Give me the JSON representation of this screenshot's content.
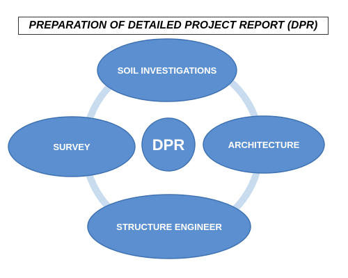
{
  "title": "PREPARATION OF DETAILED PROJECT REPORT (DPR)",
  "colors": {
    "node_fill": "#5b8fcf",
    "node_stroke": "#3f72b2",
    "ring": "#c9dcef",
    "label": "#ffffff"
  },
  "center": {
    "label": "DPR"
  },
  "nodes": {
    "soil": {
      "label": "SOIL INVESTIGATIONS"
    },
    "architecture": {
      "label": "ARCHITECTURE"
    },
    "structure": {
      "label": "STRUCTURE ENGINEER"
    },
    "survey": {
      "label": "SURVEY"
    }
  }
}
